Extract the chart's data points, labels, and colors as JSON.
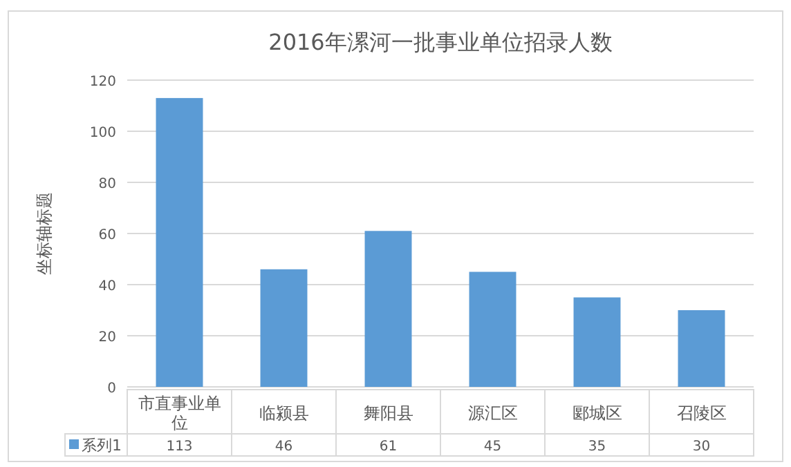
{
  "chart_data": {
    "type": "bar",
    "title": "2016年漯河一批事业单位招录人数",
    "ylabel": "坐标轴标题",
    "categories": [
      "市直事业单位",
      "临颍县",
      "舞阳县",
      "源汇区",
      "郾城区",
      "召陵区"
    ],
    "series": [
      {
        "name": "系列1",
        "color": "#5b9bd5",
        "values": [
          113,
          46,
          61,
          45,
          35,
          30
        ]
      }
    ],
    "ylim": [
      0,
      120
    ],
    "yticks": [
      0,
      20,
      40,
      60,
      80,
      100,
      120
    ],
    "grid": "y",
    "data_labels": true
  }
}
